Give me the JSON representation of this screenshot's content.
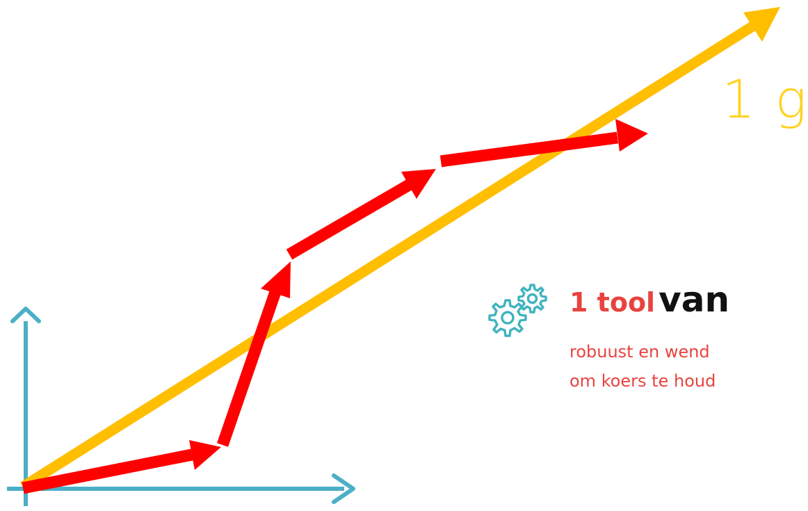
{
  "colors": {
    "axes": "#4BAFC6",
    "goal_line": "#FFBE00",
    "goal_text": "#FFD21E",
    "path": "#FF0000",
    "accent_red": "#E8433F",
    "icon": "#3FB3BE"
  },
  "goal": {
    "text": "1 g"
  },
  "tool": {
    "count_label": "1 tool",
    "title_rest": "van",
    "subtitle_line1": "robuust en wend",
    "subtitle_line2": "om koers te houd",
    "icon": "gears-icon"
  }
}
